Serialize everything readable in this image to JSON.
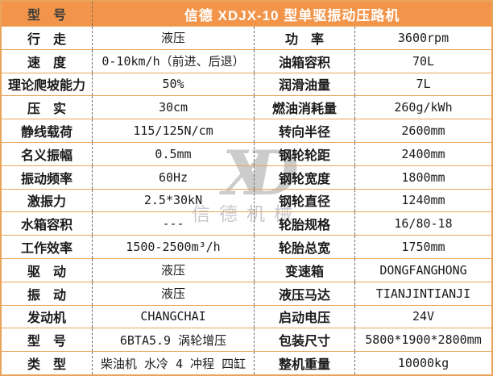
{
  "colors": {
    "header_bg": "#f2954a",
    "header_title_text": "#ffffff",
    "header_label_text": "#3b3b3b",
    "horizontal_border": "#e9a45b",
    "vertical_divider": "#6e6e6e",
    "body_text": "#1a1a1a",
    "watermark": "#cccccc"
  },
  "header": {
    "label": "型　号",
    "title": "信德 XDJX-10 型单驱振动压路机"
  },
  "table": {
    "rows": [
      [
        "行　走",
        "液压",
        "功　率",
        "3600rpm"
      ],
      [
        "速　度",
        "0-10km/h（前进、后退）",
        "油箱容积",
        "70L"
      ],
      [
        "理论爬坡能力",
        "50%",
        "润滑油量",
        "7L"
      ],
      [
        "压　实",
        "30cm",
        "燃油消耗量",
        "260g/kWh"
      ],
      [
        "静线载荷",
        "115/125N/cm",
        "转向半径",
        "2600mm"
      ],
      [
        "名义振幅",
        "0.5mm",
        "钢轮轮距",
        "2400mm"
      ],
      [
        "振动频率",
        "60Hz",
        "钢轮宽度",
        "1800mm"
      ],
      [
        "激振力",
        "2.5*30kN",
        "钢轮直径",
        "1240mm"
      ],
      [
        "水箱容积",
        "---",
        "轮胎规格",
        "16/80-18"
      ],
      [
        "工作效率",
        "1500-2500m³/h",
        "轮胎总宽",
        "1750mm"
      ],
      [
        "驱　动",
        "液压",
        "变速箱",
        "DONGFANGHONG"
      ],
      [
        "振　动",
        "液压",
        "液压马达",
        "TIANJINTIANJI"
      ],
      [
        "发动机",
        "CHANGCHAI",
        "启动电压",
        "24V"
      ],
      [
        "型　号",
        "6BTA5.9 涡轮增压",
        "包装尺寸",
        "5800*1900*2800mm"
      ],
      [
        "类　型",
        "柴油机 水冷 4 冲程 四缸",
        "整机重量",
        "10000kg"
      ]
    ]
  },
  "watermark": {
    "monogram_x": "X",
    "monogram_d": "D",
    "text": "信德机械"
  }
}
